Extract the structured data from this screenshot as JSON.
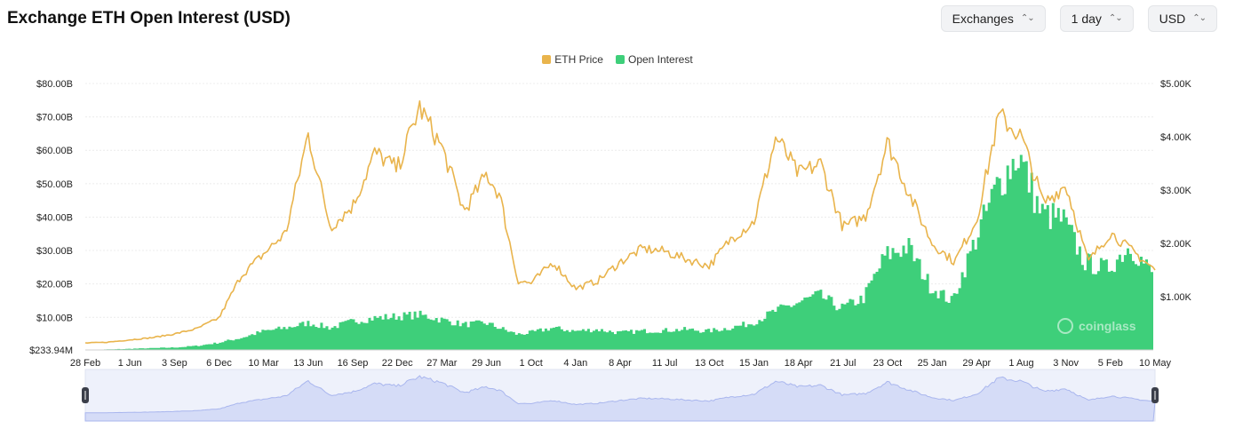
{
  "header": {
    "title": "Exchange ETH Open Interest (USD)",
    "controls": [
      {
        "label": "Exchanges"
      },
      {
        "label": "1 day"
      },
      {
        "label": "USD"
      }
    ]
  },
  "colors": {
    "price": "#e9b44c",
    "oi": "#3ecf7a",
    "grid": "#ececec",
    "navigator_fill": "#d5dcf7",
    "navigator_line": "#a9b6ee"
  },
  "watermark": {
    "text": "coinglass",
    "icon": "coinglass-logo-icon"
  },
  "chart_data": {
    "type": "area",
    "legend": [
      "ETH Price",
      "Open Interest"
    ],
    "legend_position": "top-center",
    "x_tick_labels": [
      "28 Feb",
      "1 Jun",
      "3 Sep",
      "6 Dec",
      "10 Mar",
      "13 Jun",
      "16 Sep",
      "22 Dec",
      "27 Mar",
      "29 Jun",
      "1 Oct",
      "4 Jan",
      "8 Apr",
      "11 Jul",
      "13 Oct",
      "15 Jan",
      "18 Apr",
      "21 Jul",
      "23 Oct",
      "25 Jan",
      "29 Apr",
      "1 Aug",
      "3 Nov",
      "5 Feb",
      "10 May"
    ],
    "left_axis": {
      "series": "Open Interest",
      "min": 233940000,
      "max": 80000000000,
      "ticks": [
        {
          "value": 233940000,
          "label": "$233.94M"
        },
        {
          "value": 10000000000,
          "label": "$10.00B"
        },
        {
          "value": 20000000000,
          "label": "$20.00B"
        },
        {
          "value": 30000000000,
          "label": "$30.00B"
        },
        {
          "value": 40000000000,
          "label": "$40.00B"
        },
        {
          "value": 50000000000,
          "label": "$50.00B"
        },
        {
          "value": 60000000000,
          "label": "$60.00B"
        },
        {
          "value": 70000000000,
          "label": "$70.00B"
        },
        {
          "value": 80000000000,
          "label": "$80.00B"
        }
      ]
    },
    "right_axis": {
      "series": "ETH Price",
      "min": 0,
      "max": 5000,
      "ticks": [
        {
          "value": 1000,
          "label": "$1.00K"
        },
        {
          "value": 2000,
          "label": "$2.00K"
        },
        {
          "value": 3000,
          "label": "$3.00K"
        },
        {
          "value": 4000,
          "label": "$4.00K"
        },
        {
          "value": 5000,
          "label": "$5.00K"
        }
      ]
    },
    "grid": true,
    "series": [
      {
        "name": "ETH Price",
        "axis": "right",
        "x": [
          0,
          0.5,
          1,
          1.5,
          2,
          2.5,
          3,
          3.5,
          4,
          4.5,
          5,
          5.5,
          6,
          6.5,
          7,
          7.5,
          8,
          8.5,
          9,
          9.3,
          9.7,
          10,
          10.5,
          11,
          11.5,
          12,
          12.5,
          13,
          13.5,
          14,
          14.5,
          15,
          15.5,
          16,
          16.5,
          17,
          17.5,
          18,
          18.5,
          19,
          19.5,
          20,
          20.5,
          21,
          21.5,
          22,
          22.5,
          23,
          23.5,
          24
        ],
        "values": [
          130,
          145,
          190,
          230,
          300,
          400,
          600,
          1400,
          1800,
          2200,
          4050,
          2300,
          2700,
          3700,
          3400,
          4550,
          3800,
          2600,
          3300,
          2900,
          1300,
          1250,
          1650,
          1150,
          1300,
          1650,
          1900,
          1850,
          1700,
          1580,
          2100,
          2400,
          4000,
          3300,
          3500,
          2300,
          2500,
          3900,
          2900,
          2000,
          1650,
          2450,
          4400,
          4000,
          2750,
          3100,
          1650,
          2200,
          1850,
          1500
        ]
      },
      {
        "name": "Open Interest",
        "axis": "left",
        "x": [
          0,
          0.5,
          1,
          1.5,
          2,
          2.5,
          3,
          3.5,
          4,
          4.5,
          5,
          5.5,
          6,
          6.5,
          7,
          7.5,
          8,
          8.5,
          9,
          9.3,
          9.7,
          10,
          10.5,
          11,
          11.5,
          12,
          12.5,
          13,
          13.5,
          14,
          14.5,
          15,
          15.5,
          16,
          16.5,
          17,
          17.5,
          18,
          18.5,
          19,
          19.5,
          20,
          20.5,
          21,
          21.5,
          22,
          22.5,
          23,
          23.5,
          24
        ],
        "values": [
          300000000,
          400000000,
          600000000,
          800000000,
          1000000000,
          1500000000,
          2500000000,
          4000000000,
          6000000000,
          7000000000,
          8500000000,
          7000000000,
          9000000000,
          10000000000,
          10500000000,
          11000000000,
          9500000000,
          8000000000,
          8500000000,
          7000000000,
          5000000000,
          5500000000,
          7000000000,
          6000000000,
          6500000000,
          5500000000,
          6000000000,
          6200000000,
          6500000000,
          6000000000,
          7000000000,
          8500000000,
          12000000000,
          14500000000,
          17000000000,
          13000000000,
          16000000000,
          29000000000,
          32000000000,
          20000000000,
          15000000000,
          33000000000,
          50000000000,
          60000000000,
          42000000000,
          40000000000,
          27000000000,
          25000000000,
          32000000000,
          24000000000
        ]
      }
    ]
  }
}
